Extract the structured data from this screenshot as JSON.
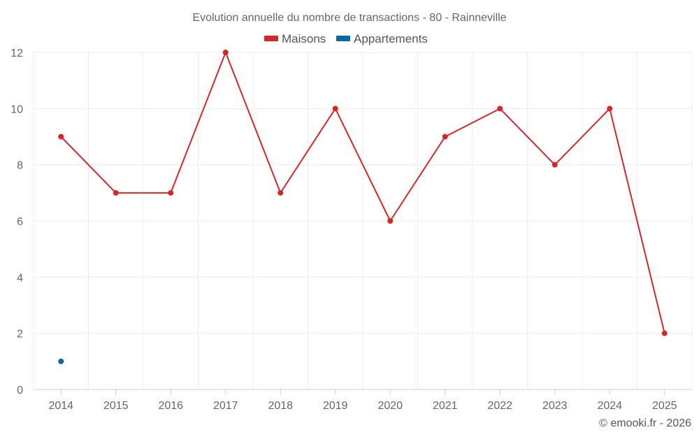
{
  "chart_data": {
    "type": "line",
    "title": "Evolution annuelle du nombre de transactions - 80 - Rainneville",
    "categories": [
      "2014",
      "2015",
      "2016",
      "2017",
      "2018",
      "2019",
      "2020",
      "2021",
      "2022",
      "2023",
      "2024",
      "2025"
    ],
    "series": [
      {
        "name": "Maisons",
        "color": "#d62728",
        "values": [
          9,
          7,
          7,
          12,
          7,
          10,
          6,
          9,
          10,
          8,
          10,
          2
        ]
      },
      {
        "name": "Appartements",
        "color": "#0868a8",
        "values": [
          1,
          null,
          null,
          null,
          null,
          null,
          null,
          null,
          null,
          null,
          null,
          null
        ]
      }
    ],
    "ylim": [
      0,
      12
    ],
    "yticks": [
      0,
      2,
      4,
      6,
      8,
      10,
      12
    ],
    "xlabel": "",
    "ylabel": "",
    "grid": true,
    "legend_position": "top-center"
  },
  "credit": "© emooki.fr - 2026"
}
